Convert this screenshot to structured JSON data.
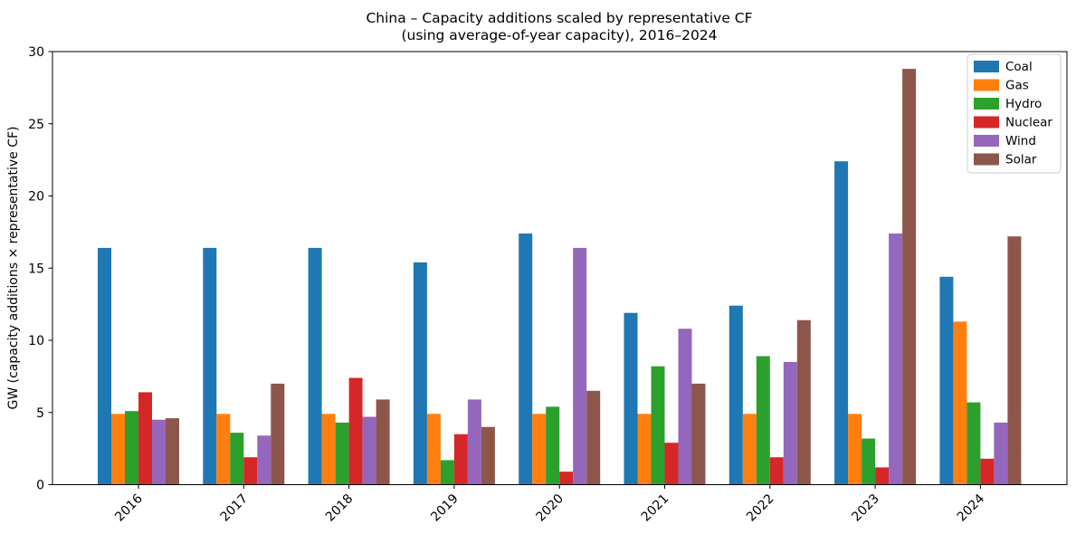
{
  "chart_data": {
    "type": "bar",
    "title_line1": "China – Capacity additions scaled by representative CF",
    "title_line2": "(using average-of-year capacity), 2016–2024",
    "ylabel": "GW (capacity additions × representative CF)",
    "xlabel": "",
    "categories": [
      "2016",
      "2017",
      "2018",
      "2019",
      "2020",
      "2021",
      "2022",
      "2023",
      "2024"
    ],
    "series": [
      {
        "name": "Coal",
        "color": "#1f77b4",
        "values": [
          16.4,
          16.4,
          16.4,
          15.4,
          17.4,
          11.9,
          12.4,
          22.4,
          14.4
        ]
      },
      {
        "name": "Gas",
        "color": "#ff7f0e",
        "values": [
          4.9,
          4.9,
          4.9,
          4.9,
          4.9,
          4.9,
          4.9,
          4.9,
          11.3
        ]
      },
      {
        "name": "Hydro",
        "color": "#2ca02c",
        "values": [
          5.1,
          3.6,
          4.3,
          1.7,
          5.4,
          8.2,
          8.9,
          3.2,
          5.7
        ]
      },
      {
        "name": "Nuclear",
        "color": "#d62728",
        "values": [
          6.4,
          1.9,
          7.4,
          3.5,
          0.9,
          2.9,
          1.9,
          1.2,
          1.8
        ]
      },
      {
        "name": "Wind",
        "color": "#9467bd",
        "values": [
          4.5,
          3.4,
          4.7,
          5.9,
          16.4,
          10.8,
          8.5,
          17.4,
          4.3
        ]
      },
      {
        "name": "Solar",
        "color": "#8c564b",
        "values": [
          4.6,
          7.0,
          5.9,
          4.0,
          6.5,
          7.0,
          11.4,
          28.8,
          17.2
        ]
      }
    ],
    "ylim": [
      0,
      30
    ],
    "yticks": [
      0,
      5,
      10,
      15,
      20,
      25,
      30
    ],
    "grid": false,
    "legend_position": "upper right",
    "legend_border_color": "#cccccc",
    "axis_color": "#000000",
    "xtick_rotation_deg": 45
  }
}
